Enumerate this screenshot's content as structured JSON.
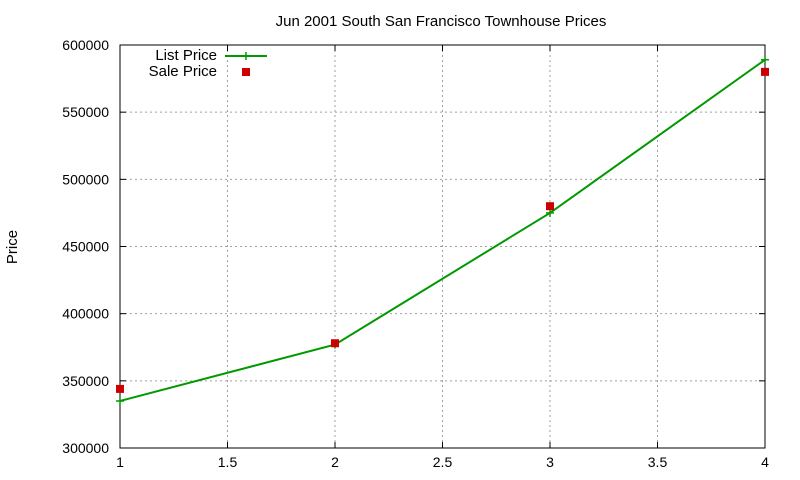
{
  "chart_data": {
    "type": "line",
    "title": "Jun 2001 South San Francisco Townhouse Prices",
    "xlabel": "",
    "ylabel": "Price",
    "xlim": [
      1,
      4
    ],
    "ylim": [
      300000,
      600000
    ],
    "x_ticks": [
      1,
      1.5,
      2,
      2.5,
      3,
      3.5,
      4
    ],
    "x_tick_labels": [
      "1",
      "1.5",
      "2",
      "2.5",
      "3",
      "3.5",
      "4"
    ],
    "y_ticks": [
      300000,
      350000,
      400000,
      450000,
      500000,
      550000,
      600000
    ],
    "y_tick_labels": [
      "300000",
      "350000",
      "400000",
      "450000",
      "500000",
      "550000",
      "600000"
    ],
    "grid": true,
    "legend_position": "top-left",
    "series": [
      {
        "name": "List Price",
        "style": "line+plus",
        "color": "#009900",
        "x": [
          1,
          2,
          3,
          4
        ],
        "values": [
          335000,
          377000,
          475000,
          589000
        ]
      },
      {
        "name": "Sale Price",
        "style": "square-points",
        "color": "#cc0000",
        "x": [
          1,
          2,
          3,
          4
        ],
        "values": [
          344000,
          378000,
          480000,
          580000
        ]
      }
    ]
  }
}
